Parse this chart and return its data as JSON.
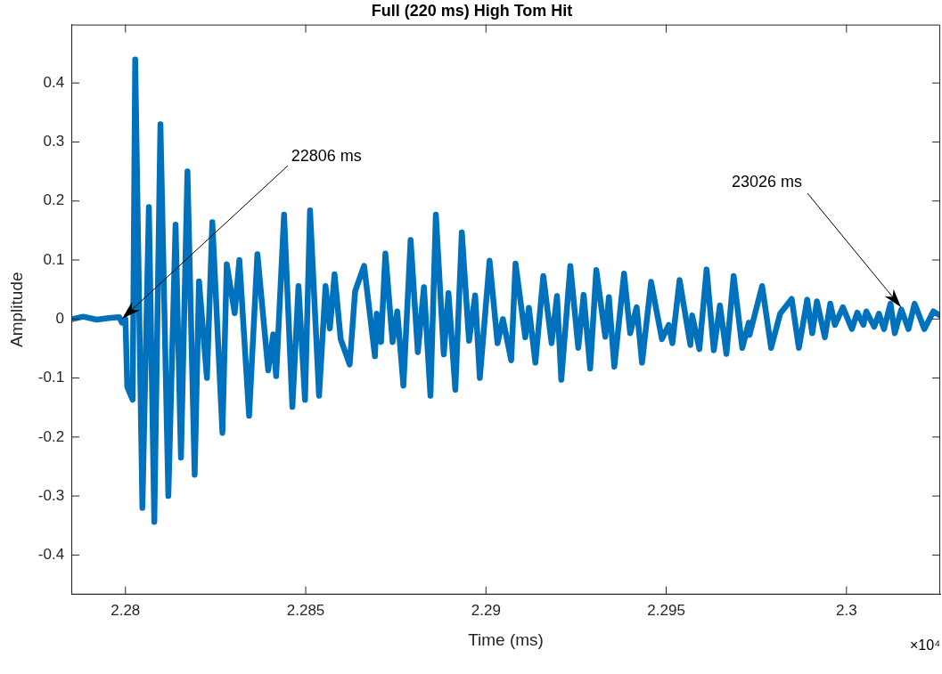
{
  "chart_data": {
    "type": "line",
    "title": "Full (220 ms) High Tom Hit",
    "xlabel": "Time (ms)",
    "ylabel": "Amplitude",
    "x": [
      2.27853,
      2.27883,
      2.2792,
      2.27958,
      2.27983,
      2.2799,
      2.28,
      2.28005,
      2.2802,
      2.28027,
      2.28047,
      2.28065,
      2.2808,
      2.28097,
      2.28119,
      2.28139,
      2.28154,
      2.28172,
      2.28192,
      2.28204,
      2.28226,
      2.28241,
      2.28269,
      2.28281,
      2.28303,
      2.28316,
      2.28343,
      2.28366,
      2.28396,
      2.2841,
      2.28418,
      2.2844,
      2.28463,
      2.2848,
      2.28498,
      2.28512,
      2.28537,
      2.28555,
      2.28567,
      2.2858,
      2.28597,
      2.28622,
      2.28637,
      2.28662,
      2.28692,
      2.28697,
      2.28709,
      2.28721,
      2.28741,
      2.28754,
      2.28771,
      2.28791,
      2.28811,
      2.28828,
      2.28846,
      2.28861,
      2.28883,
      2.28896,
      2.28915,
      2.28933,
      2.28953,
      2.2897,
      2.28983,
      2.2901,
      2.29032,
      2.29047,
      2.2907,
      2.29082,
      2.29109,
      2.29119,
      2.29137,
      2.29159,
      2.29182,
      2.29197,
      2.29209,
      2.29234,
      2.29256,
      2.29271,
      2.29289,
      2.29306,
      2.29331,
      2.29341,
      2.29356,
      2.29383,
      2.294,
      2.29418,
      2.29433,
      2.29458,
      2.29488,
      2.29507,
      2.29517,
      2.29537,
      2.29567,
      2.29572,
      2.29592,
      2.29612,
      2.29632,
      2.29649,
      2.29667,
      2.29687,
      2.29711,
      2.29729,
      2.29731,
      2.29766,
      2.29791,
      2.29816,
      2.29848,
      2.29868,
      2.29891,
      2.29905,
      2.29918,
      2.2994,
      2.29955,
      2.29968,
      2.2999,
      2.30015,
      2.3003,
      2.30047,
      2.30055,
      2.30077,
      2.3009,
      2.30104,
      2.30122,
      2.30134,
      2.30152,
      2.30172,
      2.30189,
      2.30216,
      2.30241,
      2.30259
    ],
    "series": [
      {
        "color": "#0072bd",
        "values": [
          0,
          0.004,
          -0.001,
          0.002,
          0.003,
          -0.006,
          0,
          -0.115,
          -0.137,
          0.44,
          -0.32,
          0.19,
          -0.344,
          0.33,
          -0.3,
          0.16,
          -0.235,
          0.25,
          -0.264,
          0.064,
          -0.1,
          0.164,
          -0.193,
          0.093,
          0.01,
          0.1,
          -0.164,
          0.11,
          -0.087,
          -0.026,
          -0.097,
          0.177,
          -0.149,
          0.056,
          -0.137,
          0.184,
          -0.13,
          0.056,
          -0.016,
          0.076,
          -0.034,
          -0.077,
          0.047,
          0.09,
          -0.063,
          0.009,
          -0.039,
          0.111,
          -0.039,
          0.013,
          -0.113,
          0.134,
          -0.056,
          0.054,
          -0.13,
          0.177,
          -0.06,
          0.044,
          -0.12,
          0.147,
          -0.037,
          0.04,
          -0.1,
          0.099,
          -0.041,
          0,
          -0.07,
          0.094,
          -0.031,
          0.019,
          -0.074,
          0.073,
          -0.041,
          0.039,
          -0.103,
          0.09,
          -0.049,
          0.041,
          -0.084,
          0.083,
          -0.03,
          0.037,
          -0.081,
          0.077,
          -0.024,
          0.02,
          -0.074,
          0.063,
          -0.034,
          -0.01,
          -0.041,
          0.066,
          -0.044,
          0.006,
          -0.051,
          0.084,
          -0.053,
          0.023,
          -0.059,
          0.073,
          -0.049,
          -0.006,
          -0.027,
          0.056,
          -0.049,
          0.009,
          0.034,
          -0.049,
          0.033,
          -0.024,
          0.03,
          -0.031,
          0.026,
          -0.01,
          0.02,
          -0.017,
          0.011,
          -0.01,
          0.013,
          -0.013,
          0.009,
          -0.017,
          0.026,
          -0.024,
          0.016,
          -0.017,
          0.026,
          -0.017,
          0.013,
          0.006
        ]
      }
    ],
    "xlim": [
      2.2785,
      2.3026
    ],
    "xticks": [
      2.28,
      2.285,
      2.29,
      2.295,
      2.3
    ],
    "ylim": [
      -0.467,
      0.499
    ],
    "yticks": [
      -0.4,
      -0.3,
      -0.2,
      -0.1,
      0,
      0.1,
      0.2,
      0.3,
      0.4
    ],
    "grid": false,
    "legend": false,
    "marker": "none",
    "line_style": "solid",
    "annotations": [
      {
        "text": "22806 ms",
        "x": 2.2799,
        "y": 0
      },
      {
        "text": "23026 ms",
        "x": 2.3015,
        "y": 0.02
      },
      "×10⁴"
    ]
  }
}
